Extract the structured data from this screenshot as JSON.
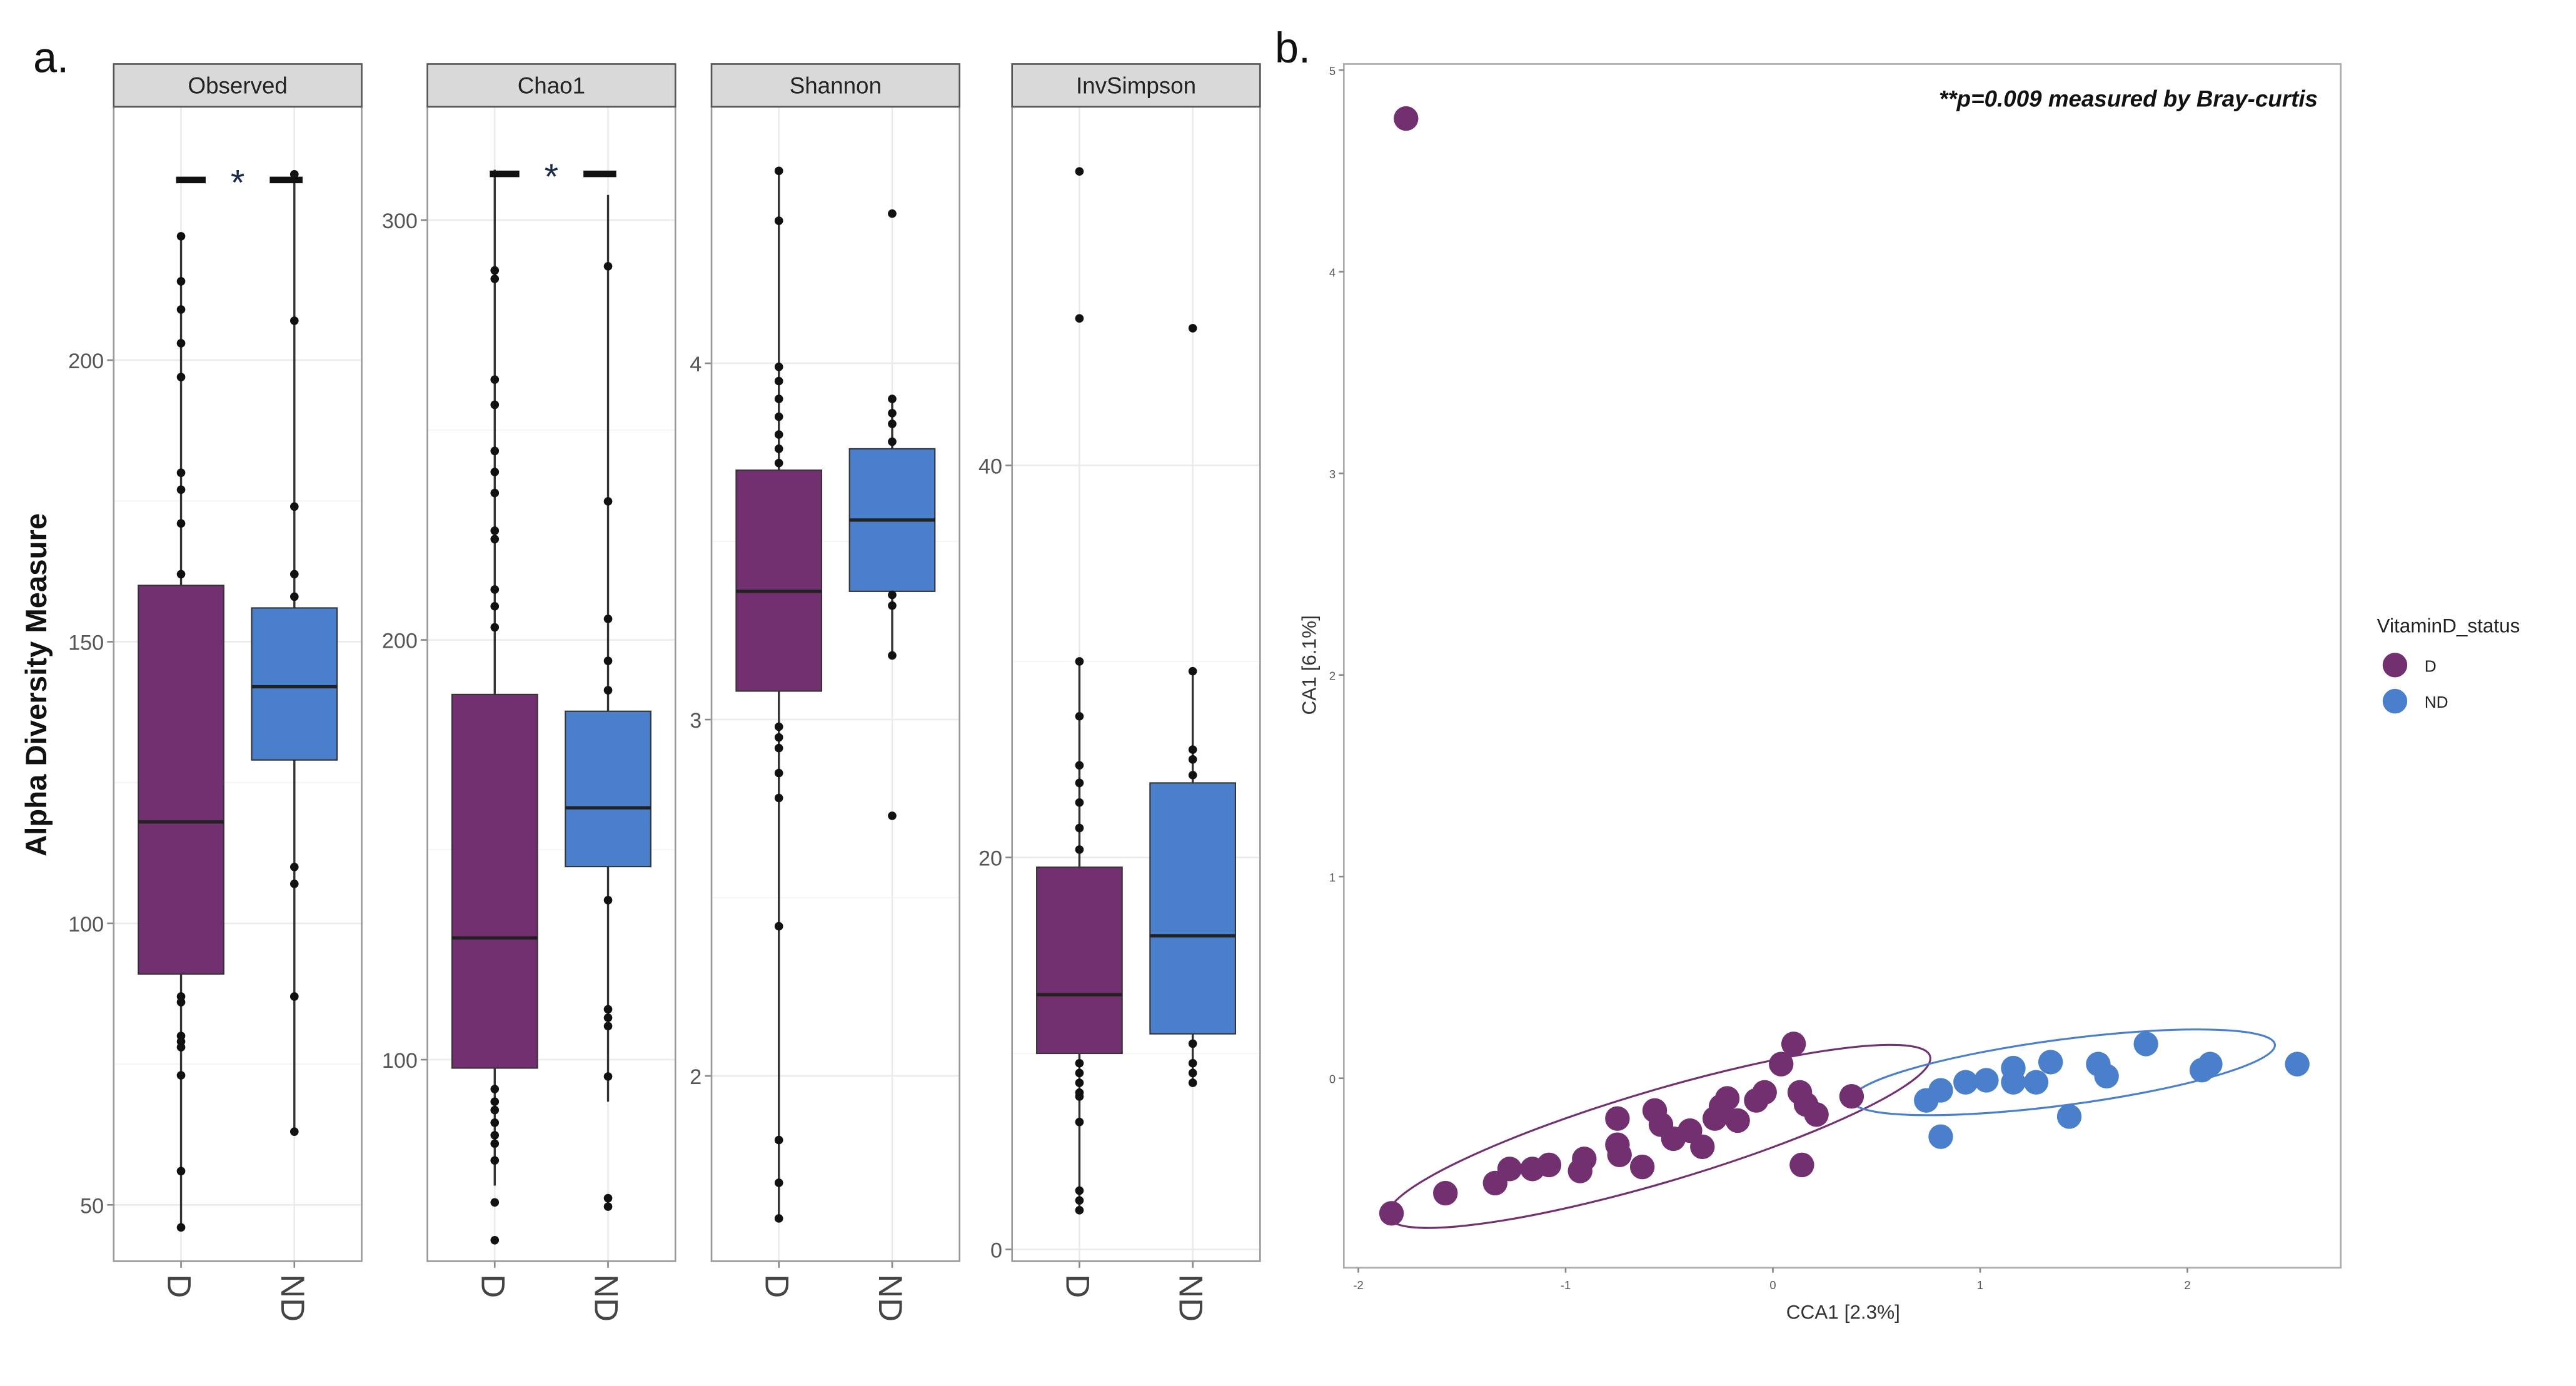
{
  "colors": {
    "D": "#733070",
    "ND": "#4a7fcb",
    "strip": "#d9d9d9",
    "grid": "#ebebeb"
  },
  "panel_labels": {
    "a": "a.",
    "b": "b."
  },
  "chart_data": [
    {
      "type": "box",
      "title": "a.",
      "ylabel": "Alpha Diversity Measure",
      "categories": [
        "D",
        "ND"
      ],
      "significance": "*",
      "facets": [
        {
          "name": "Observed",
          "ylim": [
            40,
            245
          ],
          "yticks": [
            50,
            100,
            150,
            200
          ],
          "sig_y": 232,
          "significant": true,
          "groups": {
            "D": {
              "q1": 91,
              "median": 118,
              "q3": 160,
              "whisker_low": 46,
              "whisker_high": 222,
              "points": [
                222,
                214,
                209,
                203,
                197,
                180,
                177,
                171,
                162,
                87,
                86,
                80,
                79,
                78,
                73,
                56,
                46
              ]
            },
            "ND": {
              "q1": 129,
              "median": 142,
              "q3": 156,
              "whisker_low": 63,
              "whisker_high": 233,
              "points": [
                233,
                207,
                174,
                162,
                158,
                110,
                107,
                87,
                63
              ]
            }
          }
        },
        {
          "name": "Chao1",
          "ylim": [
            52,
            327
          ],
          "yticks": [
            100,
            200,
            300
          ],
          "sig_y": 311,
          "significant": true,
          "groups": {
            "D": {
              "q1": 98,
              "median": 129,
              "q3": 187,
              "whisker_low": 70,
              "whisker_high": 312,
              "points": [
                288,
                286,
                262,
                256,
                245,
                240,
                235,
                226,
                224,
                212,
                208,
                203,
                93,
                90,
                88,
                85,
                82,
                80,
                76,
                66,
                57
              ]
            },
            "ND": {
              "q1": 146,
              "median": 160,
              "q3": 183,
              "whisker_low": 90,
              "whisker_high": 306,
              "points": [
                289,
                233,
                205,
                195,
                188,
                138,
                112,
                110,
                108,
                96,
                67,
                65
              ]
            }
          }
        },
        {
          "name": "Shannon",
          "ylim": [
            1.48,
            4.72
          ],
          "yticks": [
            2,
            3,
            4
          ],
          "significant": false,
          "groups": {
            "D": {
              "q1": 3.08,
              "median": 3.36,
              "q3": 3.7,
              "whisker_low": 1.6,
              "whisker_high": 4.54,
              "points": [
                4.54,
                4.4,
                3.99,
                3.95,
                3.9,
                3.85,
                3.8,
                3.76,
                3.72,
                2.98,
                2.95,
                2.92,
                2.85,
                2.78,
                2.42,
                1.82,
                1.7,
                1.6
              ]
            },
            "ND": {
              "q1": 3.36,
              "median": 3.56,
              "q3": 3.76,
              "whisker_low": 3.18,
              "whisker_high": 3.9,
              "points": [
                4.42,
                3.9,
                3.86,
                3.83,
                3.78,
                3.35,
                3.32,
                3.18,
                2.73
              ]
            }
          }
        },
        {
          "name": "InvSimpson",
          "ylim": [
            -0.6,
            58.3
          ],
          "yticks": [
            0,
            20,
            40
          ],
          "significant": false,
          "groups": {
            "D": {
              "q1": 10,
              "median": 13,
              "q3": 19.5,
              "whisker_low": 2,
              "whisker_high": 30,
              "points": [
                55,
                47.5,
                30,
                27.2,
                24.7,
                23.8,
                22.8,
                21.5,
                20.4,
                9.5,
                9,
                8.5,
                8,
                7.8,
                6.5,
                3,
                2.5,
                2
              ]
            },
            "ND": {
              "q1": 11,
              "median": 16,
              "q3": 23.8,
              "whisker_low": 8.5,
              "whisker_high": 29.5,
              "points": [
                47,
                29.5,
                25.5,
                25,
                24.2,
                10.5,
                9.5,
                9,
                8.5
              ]
            }
          }
        }
      ]
    },
    {
      "type": "scatter",
      "title": "b.",
      "xlabel": "CCA1   [2.3%]",
      "ylabel": "CA1   [6.1%]",
      "annotation": "**p=0.009 measured by Bray-curtis",
      "xlim": [
        -2.07,
        2.74
      ],
      "ylim": [
        -0.94,
        5.03
      ],
      "xticks": [
        -2,
        -1,
        0,
        1,
        2
      ],
      "yticks": [
        0,
        1,
        2,
        3,
        4,
        5
      ],
      "legend": {
        "title": "VitaminD_status",
        "position": "right",
        "entries": [
          "D",
          "ND"
        ]
      },
      "series": [
        {
          "name": "D",
          "points": [
            [
              -1.77,
              4.76
            ],
            [
              -1.84,
              -0.67
            ],
            [
              -1.58,
              -0.57
            ],
            [
              -1.34,
              -0.52
            ],
            [
              -1.27,
              -0.45
            ],
            [
              -1.16,
              -0.45
            ],
            [
              -1.08,
              -0.43
            ],
            [
              -0.93,
              -0.46
            ],
            [
              -0.91,
              -0.4
            ],
            [
              -0.75,
              -0.33
            ],
            [
              -0.74,
              -0.38
            ],
            [
              -0.63,
              -0.44
            ],
            [
              -0.75,
              -0.2
            ],
            [
              -0.57,
              -0.16
            ],
            [
              -0.54,
              -0.23
            ],
            [
              -0.48,
              -0.3
            ],
            [
              -0.34,
              -0.34
            ],
            [
              -0.4,
              -0.26
            ],
            [
              -0.28,
              -0.2
            ],
            [
              -0.25,
              -0.14
            ],
            [
              -0.22,
              -0.1
            ],
            [
              -0.17,
              -0.21
            ],
            [
              -0.08,
              -0.11
            ],
            [
              -0.04,
              -0.07
            ],
            [
              0.04,
              0.07
            ],
            [
              0.1,
              0.17
            ],
            [
              0.13,
              -0.07
            ],
            [
              0.16,
              -0.13
            ],
            [
              0.21,
              -0.18
            ],
            [
              0.14,
              -0.43
            ],
            [
              0.38,
              -0.09
            ]
          ]
        },
        {
          "name": "ND",
          "points": [
            [
              0.74,
              -0.11
            ],
            [
              0.81,
              -0.06
            ],
            [
              0.81,
              -0.29
            ],
            [
              0.93,
              -0.02
            ],
            [
              1.03,
              -0.01
            ],
            [
              1.16,
              0.05
            ],
            [
              1.16,
              -0.02
            ],
            [
              1.27,
              -0.02
            ],
            [
              1.34,
              0.08
            ],
            [
              1.43,
              -0.19
            ],
            [
              1.57,
              0.07
            ],
            [
              1.61,
              0.01
            ],
            [
              1.8,
              0.17
            ],
            [
              2.07,
              0.04
            ],
            [
              2.11,
              0.07
            ],
            [
              2.53,
              0.07
            ]
          ]
        }
      ]
    }
  ]
}
